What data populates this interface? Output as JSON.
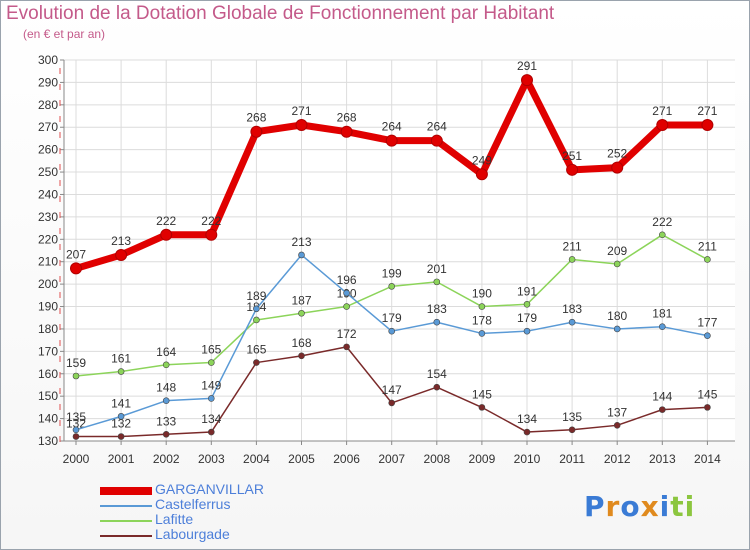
{
  "title": "Evolution de la Dotation Globale de Fonctionnement par Habitant",
  "subtitle": "(en € et par an)",
  "logo": "Proxiti",
  "chart_data": {
    "type": "line",
    "x": [
      "2000",
      "2001",
      "2002",
      "2003",
      "2004",
      "2005",
      "2006",
      "2007",
      "2008",
      "2009",
      "2010",
      "2011",
      "2012",
      "2013",
      "2014"
    ],
    "ylim": [
      130,
      300
    ],
    "yticks": [
      130,
      140,
      150,
      160,
      170,
      180,
      190,
      200,
      210,
      220,
      230,
      240,
      250,
      260,
      270,
      280,
      290,
      300
    ],
    "grid": true,
    "legend_position": "bottom-left",
    "series": [
      {
        "name": "GARGANVILLAR",
        "color": "#e00000",
        "values": [
          207,
          213,
          222,
          222,
          268,
          271,
          268,
          264,
          264,
          249,
          291,
          251,
          252,
          271,
          271
        ]
      },
      {
        "name": "Castelferrus",
        "color": "#5a9ad6",
        "values": [
          135,
          141,
          148,
          149,
          189,
          213,
          196,
          179,
          183,
          178,
          179,
          183,
          180,
          181,
          177
        ]
      },
      {
        "name": "Lafitte",
        "color": "#8cd45a",
        "values": [
          159,
          161,
          164,
          165,
          184,
          187,
          190,
          199,
          201,
          190,
          191,
          211,
          209,
          222,
          211
        ]
      },
      {
        "name": "Labourgade",
        "color": "#7a2a2a",
        "values": [
          132,
          132,
          133,
          134,
          165,
          168,
          172,
          147,
          154,
          145,
          134,
          135,
          137,
          144,
          145
        ]
      }
    ]
  }
}
